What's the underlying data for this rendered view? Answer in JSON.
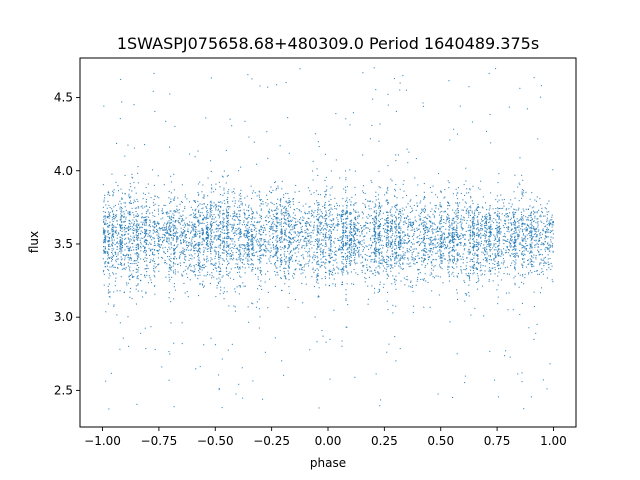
{
  "chart_data": {
    "type": "scatter",
    "title": "1SWASPJ075658.68+480309.0 Period 1640489.375s",
    "xlabel": "phase",
    "ylabel": "flux",
    "xlim": [
      -1.1,
      1.1
    ],
    "ylim": [
      2.25,
      4.77
    ],
    "xticks": [
      -1.0,
      -0.75,
      -0.5,
      -0.25,
      0.0,
      0.25,
      0.5,
      0.75,
      1.0
    ],
    "xtick_labels": [
      "−1.00",
      "−0.75",
      "−0.50",
      "−0.25",
      "0.00",
      "0.25",
      "0.50",
      "0.75",
      "1.00"
    ],
    "yticks": [
      2.5,
      3.0,
      3.5,
      4.0,
      4.5
    ],
    "ytick_labels": [
      "2.5",
      "3.0",
      "3.5",
      "4.0",
      "4.5"
    ],
    "grid": false,
    "legend": "none",
    "marker_color": "#1f77b4",
    "series": [
      {
        "x_range": [
          -1.0,
          1.0
        ],
        "y_core_range": [
          3.2,
          3.85
        ],
        "y_full_range": [
          2.37,
          4.72
        ],
        "y_center": 3.55,
        "point_count_approx": 60000
      }
    ]
  }
}
